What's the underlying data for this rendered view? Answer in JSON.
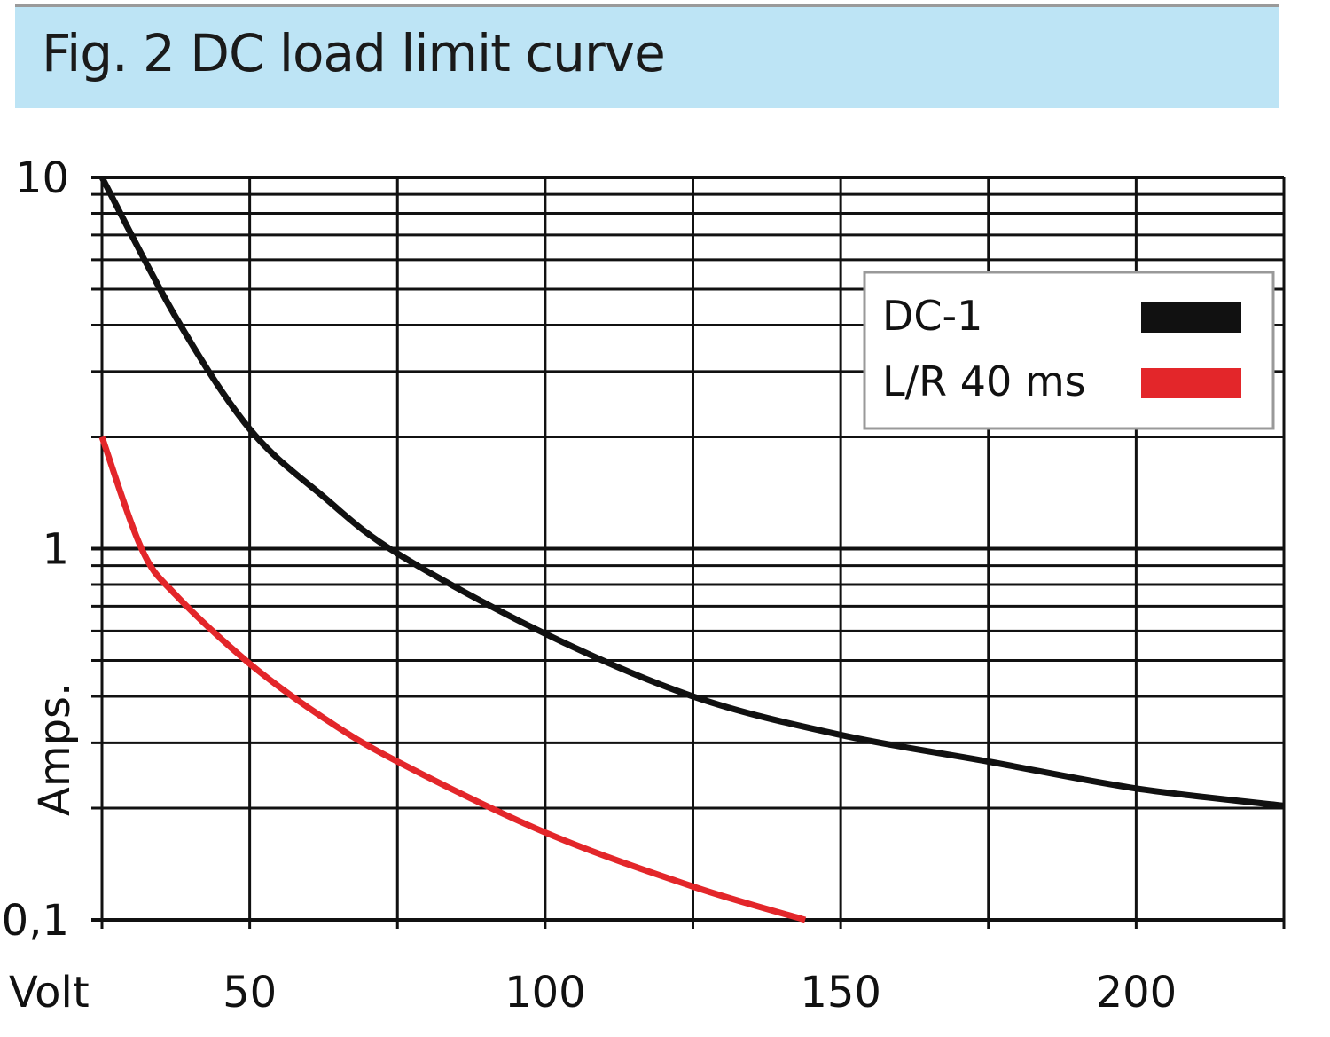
{
  "chart_data": {
    "type": "line",
    "title": "Fig. 2 DC load limit curve",
    "xlabel": "Volt",
    "ylabel": "Amps.",
    "xlim": [
      25,
      225
    ],
    "ylim": [
      0.1,
      10
    ],
    "yscale": "log",
    "grid": true,
    "x_ticks": [
      50,
      100,
      150,
      200
    ],
    "y_tick_labels": [
      "10",
      "1",
      "0,1"
    ],
    "legend_position": "top-right",
    "series": [
      {
        "name": "DC-1",
        "color": "#111111",
        "x": [
          25,
          37.5,
          50,
          62.5,
          75,
          100,
          125,
          150,
          175,
          200,
          225
        ],
        "y": [
          10,
          4.2,
          2.1,
          1.38,
          0.97,
          0.59,
          0.4,
          0.315,
          0.267,
          0.226,
          0.203
        ]
      },
      {
        "name": "L/R 40 ms",
        "color": "#e3262a",
        "x": [
          25,
          31.7,
          37.5,
          50,
          62.5,
          75,
          100,
          125,
          144
        ],
        "y": [
          2.0,
          1.0,
          0.75,
          0.49,
          0.35,
          0.267,
          0.172,
          0.123,
          0.1
        ]
      }
    ]
  }
}
